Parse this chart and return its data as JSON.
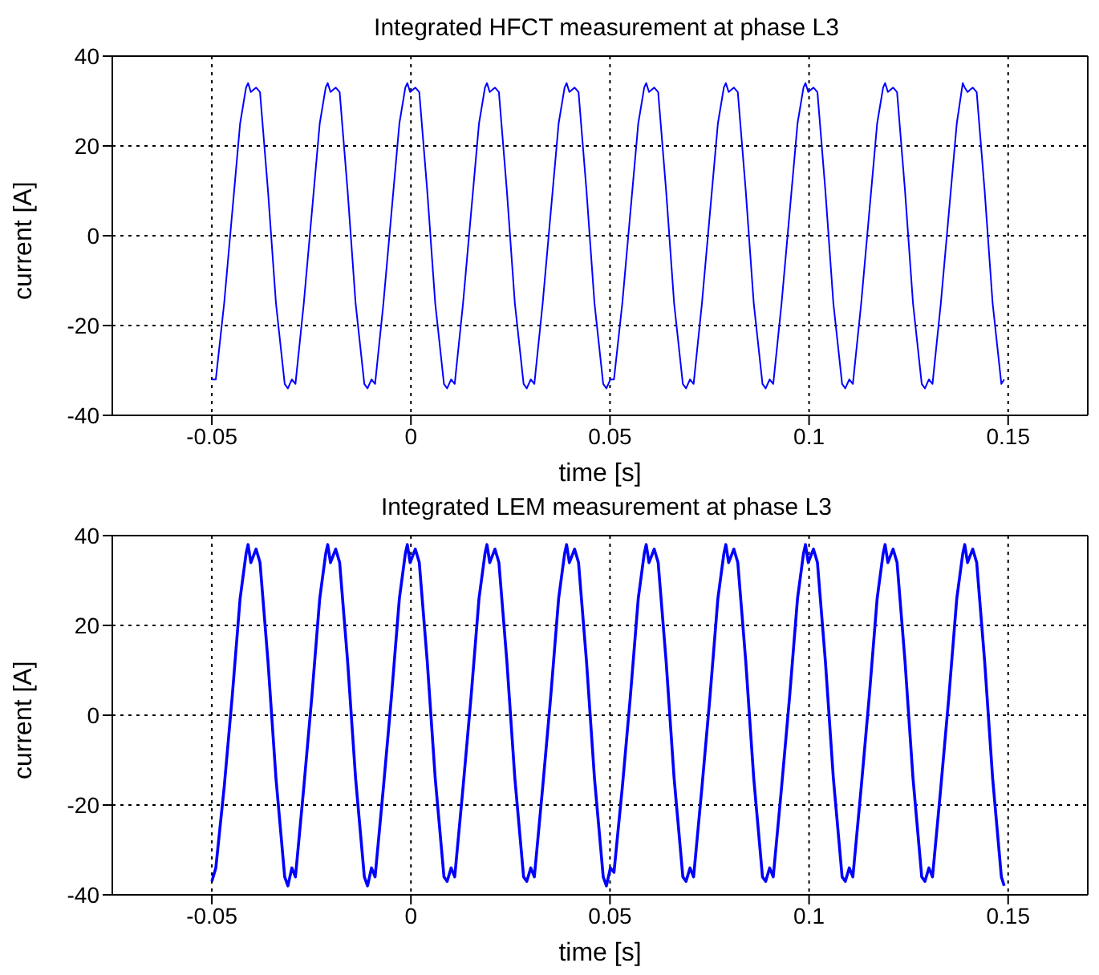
{
  "chart_data": [
    {
      "type": "line",
      "title": "Integrated HFCT measurement at phase L3",
      "xlabel": "time [s]",
      "ylabel": "current [A]",
      "xlim": [
        -0.075,
        0.17
      ],
      "xticks": [
        -0.05,
        0,
        0.05,
        0.1,
        0.15
      ],
      "ylim": [
        -40,
        40
      ],
      "yticks": [
        -40,
        -20,
        0,
        20,
        40
      ],
      "grid": true,
      "legend": false,
      "marker": "none",
      "line_style": "solid",
      "x": [
        -0.05,
        -0.049,
        -0.0469,
        -0.0449,
        -0.0429,
        -0.0414,
        -0.0409,
        -0.0402,
        -0.0389,
        -0.0379,
        -0.0359,
        -0.0339,
        -0.0317,
        -0.0309,
        -0.0299,
        -0.029,
        -0.0269,
        -0.0249,
        -0.0229,
        -0.0214,
        -0.0209,
        -0.0202,
        -0.0189,
        -0.0179,
        -0.0159,
        -0.0139,
        -0.0117,
        -0.0109,
        -0.0099,
        -0.009,
        -0.0069,
        -0.0049,
        -0.0029,
        -0.0014,
        -0.0009,
        -0.0002,
        0.0011,
        0.0021,
        0.0041,
        0.0061,
        0.0083,
        0.0091,
        0.0101,
        0.011,
        0.0131,
        0.0151,
        0.0171,
        0.0186,
        0.0191,
        0.0198,
        0.0211,
        0.0221,
        0.0241,
        0.0261,
        0.0283,
        0.0291,
        0.0301,
        0.031,
        0.0331,
        0.0351,
        0.0371,
        0.0386,
        0.0391,
        0.0398,
        0.0411,
        0.0421,
        0.0441,
        0.0461,
        0.0483,
        0.0491,
        0.0501,
        0.051,
        0.0531,
        0.0551,
        0.0571,
        0.0586,
        0.0591,
        0.0598,
        0.0611,
        0.0621,
        0.0641,
        0.0661,
        0.0683,
        0.0691,
        0.0701,
        0.071,
        0.0731,
        0.0751,
        0.0771,
        0.0786,
        0.0791,
        0.0798,
        0.0811,
        0.0821,
        0.0841,
        0.0861,
        0.0883,
        0.0891,
        0.0901,
        0.091,
        0.0931,
        0.0951,
        0.0971,
        0.0986,
        0.0991,
        0.0998,
        0.1011,
        0.1021,
        0.1041,
        0.1061,
        0.1083,
        0.1091,
        0.1101,
        0.111,
        0.1131,
        0.1151,
        0.1171,
        0.1186,
        0.1191,
        0.1198,
        0.1211,
        0.1221,
        0.1241,
        0.1261,
        0.1283,
        0.1291,
        0.1301,
        0.131,
        0.1331,
        0.1351,
        0.1371,
        0.1386,
        0.1391,
        0.1398,
        0.1411,
        0.1421,
        0.1441,
        0.1461,
        0.1483,
        0.149
      ],
      "series": [
        {
          "color": "#0000ff",
          "values": [
            -32,
            -32,
            -15,
            5,
            25,
            33,
            34,
            32,
            33,
            32,
            10,
            -15,
            -33,
            -34,
            -32,
            -33,
            -15,
            5,
            25,
            33,
            34,
            32,
            33,
            32,
            10,
            -15,
            -33,
            -34,
            -32,
            -33,
            -15,
            5,
            25,
            33,
            34,
            32,
            33,
            32,
            10,
            -15,
            -33,
            -34,
            -32,
            -33,
            -15,
            5,
            25,
            33,
            34,
            32,
            33,
            32,
            10,
            -15,
            -33,
            -34,
            -32,
            -33,
            -15,
            5,
            25,
            33,
            34,
            32,
            33,
            32,
            10,
            -15,
            -33,
            -34,
            -32,
            -32,
            -15,
            5,
            25,
            33,
            34,
            32,
            33,
            32,
            10,
            -15,
            -33,
            -34,
            -32,
            -33,
            -15,
            5,
            25,
            33,
            34,
            32,
            33,
            32,
            10,
            -15,
            -33,
            -34,
            -32,
            -33,
            -15,
            5,
            25,
            33,
            34,
            32,
            33,
            32,
            10,
            -15,
            -33,
            -34,
            -32,
            -33,
            -15,
            5,
            25,
            33,
            34,
            32,
            33,
            32,
            10,
            -15,
            -33,
            -34,
            -32,
            -33,
            -15,
            5,
            25,
            34,
            33,
            32,
            33,
            32,
            10,
            -15,
            -33,
            -32
          ]
        }
      ]
    },
    {
      "type": "line",
      "title": "Integrated LEM measurement at phase L3",
      "xlabel": "time [s]",
      "ylabel": "current [A]",
      "xlim": [
        -0.075,
        0.17
      ],
      "xticks": [
        -0.05,
        0,
        0.05,
        0.1,
        0.15
      ],
      "ylim": [
        -40,
        40
      ],
      "yticks": [
        -40,
        -20,
        0,
        20,
        40
      ],
      "grid": true,
      "legend": false,
      "marker": "none",
      "line_style": "solid",
      "x": [
        -0.05,
        -0.049,
        -0.0469,
        -0.0449,
        -0.0429,
        -0.0414,
        -0.0409,
        -0.0402,
        -0.0389,
        -0.0379,
        -0.0359,
        -0.0339,
        -0.0317,
        -0.0309,
        -0.0299,
        -0.029,
        -0.0269,
        -0.0249,
        -0.0229,
        -0.0214,
        -0.0209,
        -0.0202,
        -0.0189,
        -0.0179,
        -0.0159,
        -0.0139,
        -0.0117,
        -0.0109,
        -0.0099,
        -0.009,
        -0.0069,
        -0.0049,
        -0.0029,
        -0.0014,
        -0.0009,
        -0.0002,
        0.0011,
        0.0021,
        0.0041,
        0.0061,
        0.0083,
        0.0091,
        0.0101,
        0.011,
        0.0131,
        0.0151,
        0.0171,
        0.0186,
        0.0191,
        0.0198,
        0.0211,
        0.0221,
        0.0241,
        0.0261,
        0.0283,
        0.0291,
        0.0301,
        0.031,
        0.0331,
        0.0351,
        0.0371,
        0.0386,
        0.0391,
        0.0398,
        0.0411,
        0.0421,
        0.0441,
        0.0461,
        0.0483,
        0.0491,
        0.0501,
        0.051,
        0.0531,
        0.0551,
        0.0571,
        0.0586,
        0.0591,
        0.0598,
        0.0611,
        0.0621,
        0.0641,
        0.0661,
        0.0683,
        0.0691,
        0.0701,
        0.071,
        0.0731,
        0.0751,
        0.0771,
        0.0786,
        0.0791,
        0.0798,
        0.0811,
        0.0821,
        0.0841,
        0.0861,
        0.0883,
        0.0891,
        0.0901,
        0.091,
        0.0931,
        0.0951,
        0.0971,
        0.0986,
        0.0991,
        0.0998,
        0.1011,
        0.1021,
        0.1041,
        0.1061,
        0.1083,
        0.1091,
        0.1101,
        0.111,
        0.1131,
        0.1151,
        0.1171,
        0.1186,
        0.1191,
        0.1198,
        0.1211,
        0.1221,
        0.1241,
        0.1261,
        0.1283,
        0.1291,
        0.1301,
        0.131,
        0.1331,
        0.1351,
        0.1371,
        0.1386,
        0.1391,
        0.1398,
        0.1411,
        0.1421,
        0.1441,
        0.1461,
        0.1483,
        0.149
      ],
      "series": [
        {
          "color": "#0000ff",
          "values": [
            -37,
            -34,
            -16,
            4,
            26,
            36,
            38,
            34,
            37,
            34,
            12,
            -14,
            -36,
            -38,
            -34,
            -36,
            -16,
            4,
            26,
            36,
            38,
            34,
            37,
            34,
            12,
            -14,
            -36,
            -38,
            -34,
            -36,
            -16,
            4,
            26,
            36,
            38,
            34,
            37,
            34,
            12,
            -14,
            -36,
            -37,
            -34,
            -36,
            -16,
            4,
            26,
            36,
            38,
            34,
            37,
            34,
            12,
            -14,
            -36,
            -37,
            -34,
            -36,
            -16,
            4,
            26,
            36,
            38,
            34,
            37,
            34,
            12,
            -14,
            -36,
            -38,
            -34,
            -35,
            -16,
            4,
            26,
            36,
            38,
            34,
            37,
            34,
            12,
            -14,
            -36,
            -37,
            -34,
            -36,
            -16,
            4,
            26,
            36,
            38,
            34,
            37,
            34,
            12,
            -14,
            -36,
            -37,
            -34,
            -36,
            -16,
            4,
            26,
            36,
            38,
            34,
            37,
            34,
            12,
            -14,
            -36,
            -37,
            -34,
            -36,
            -16,
            4,
            26,
            36,
            38,
            34,
            37,
            34,
            12,
            -14,
            -36,
            -37,
            -34,
            -36,
            -16,
            4,
            26,
            36,
            38,
            34,
            37,
            34,
            12,
            -14,
            -36,
            -38
          ]
        }
      ]
    }
  ]
}
